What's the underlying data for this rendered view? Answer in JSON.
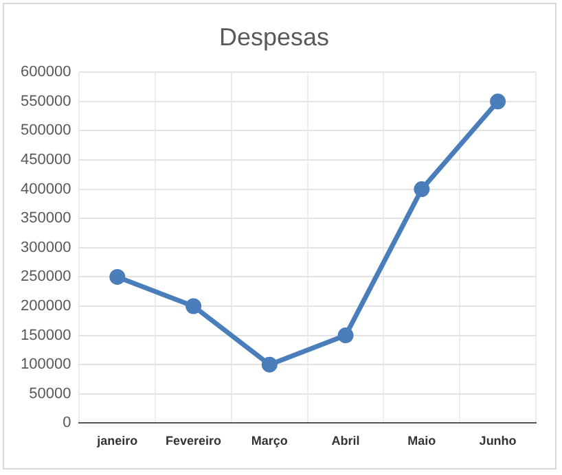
{
  "chart_data": {
    "type": "line",
    "title": "Despesas",
    "categories": [
      "janeiro",
      "Fevereiro",
      "Março",
      "Abril",
      "Maio",
      "Junho"
    ],
    "series": [
      {
        "color": "#4a7ebb",
        "values": [
          250000,
          200000,
          100000,
          150000,
          400000,
          550000
        ]
      }
    ],
    "ylim": [
      0,
      600000
    ],
    "yticks": [
      0,
      50000,
      100000,
      150000,
      200000,
      250000,
      300000,
      350000,
      400000,
      450000,
      500000,
      550000,
      600000
    ],
    "grid": true,
    "marker": "circle",
    "line_style": "solid",
    "legend": false
  }
}
